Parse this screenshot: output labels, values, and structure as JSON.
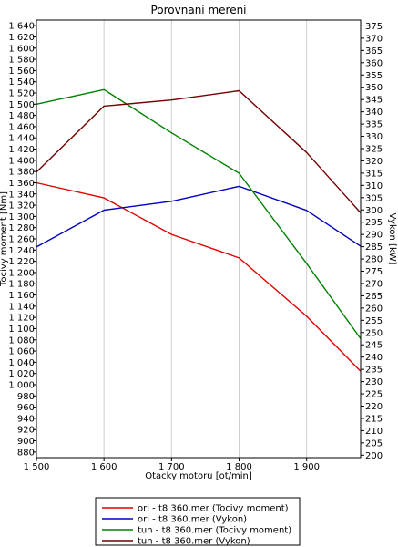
{
  "chart_data": {
    "type": "line",
    "title": "Porovnani mereni",
    "xlabel": "Otacky motoru [ot/min]",
    "ylabel_left": "Tocivy moment [Nm]",
    "ylabel_right": "Vykon [kW]",
    "xlim": [
      1500,
      1980
    ],
    "ylim_left": [
      870,
      1650
    ],
    "ylim_right": [
      199,
      377.4
    ],
    "x_ticks": [
      1500,
      1600,
      1700,
      1800,
      1900
    ],
    "x_tick_labels": [
      "1 500",
      "1 600",
      "1 700",
      "1 800",
      "1 900"
    ],
    "y_left_ticks": [
      880,
      900,
      920,
      940,
      960,
      980,
      1000,
      1020,
      1040,
      1060,
      1080,
      1100,
      1120,
      1140,
      1160,
      1180,
      1200,
      1220,
      1240,
      1260,
      1280,
      1300,
      1320,
      1340,
      1360,
      1380,
      1400,
      1420,
      1440,
      1460,
      1480,
      1500,
      1520,
      1540,
      1560,
      1580,
      1600,
      1620,
      1640
    ],
    "y_left_tick_labels": [
      "880",
      "900",
      "920",
      "940",
      "960",
      "980",
      "1 000",
      "1 020",
      "1 040",
      "1 060",
      "1 080",
      "1 100",
      "1 120",
      "1 140",
      "1 160",
      "1 180",
      "1 200",
      "1 220",
      "1 240",
      "1 260",
      "1 280",
      "1 300",
      "1 320",
      "1 340",
      "1 360",
      "1 380",
      "1 400",
      "1 420",
      "1 440",
      "1 460",
      "1 480",
      "1 500",
      "1 520",
      "1 540",
      "1 560",
      "1 580",
      "1 600",
      "1 620",
      "1 640"
    ],
    "y_right_ticks": [
      200,
      205,
      210,
      215,
      220,
      225,
      230,
      235,
      240,
      245,
      250,
      255,
      260,
      265,
      270,
      275,
      280,
      285,
      290,
      295,
      300,
      305,
      310,
      315,
      320,
      325,
      330,
      335,
      340,
      345,
      350,
      355,
      360,
      365,
      370,
      375
    ],
    "y_right_tick_labels": [
      "200",
      "205",
      "210",
      "215",
      "220",
      "225",
      "230",
      "235",
      "240",
      "245",
      "250",
      "255",
      "260",
      "265",
      "270",
      "275",
      "280",
      "285",
      "290",
      "295",
      "300",
      "305",
      "310",
      "315",
      "320",
      "325",
      "330",
      "335",
      "340",
      "345",
      "350",
      "355",
      "360",
      "365",
      "370",
      "375"
    ],
    "grid": "vertical",
    "legend_position": "bottom-center",
    "series": [
      {
        "name": "ori - t8 360.mer  (Tocivy moment)",
        "axis": "left",
        "color": "#e00000",
        "x": [
          1500,
          1600,
          1700,
          1800,
          1900,
          1980
        ],
        "y": [
          1360,
          1333,
          1268,
          1226,
          1122,
          1024
        ]
      },
      {
        "name": "ori - t8 360.mer  (Vykon)",
        "axis": "right",
        "color": "#0000c0",
        "x": [
          1500,
          1600,
          1700,
          1800,
          1900,
          1980
        ],
        "y": [
          284.9,
          299.9,
          303.5,
          309.6,
          299.8,
          285.2
        ]
      },
      {
        "name": "tun - t8 360.mer  (Tocivy moment)",
        "axis": "left",
        "color": "#008000",
        "x": [
          1500,
          1600,
          1700,
          1800,
          1900,
          1980
        ],
        "y": [
          1500,
          1526,
          1449,
          1377,
          1216,
          1082
        ]
      },
      {
        "name": "tun - t8 360.mer  (Vykon)",
        "axis": "right",
        "color": "#700000",
        "x": [
          1500,
          1600,
          1700,
          1800,
          1900,
          1980
        ],
        "y": [
          315.4,
          342.3,
          344.8,
          348.6,
          323.4,
          298.8
        ]
      }
    ]
  }
}
